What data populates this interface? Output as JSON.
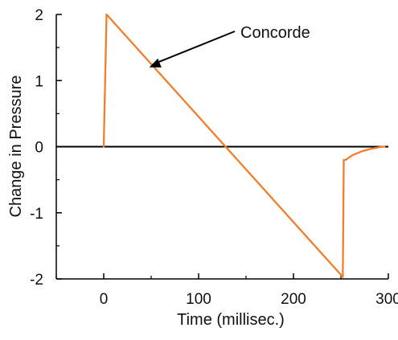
{
  "chart_data": {
    "type": "line",
    "xlabel": "Time (millisec.)",
    "ylabel": "Change in Pressure",
    "xlim": [
      -50,
      300
    ],
    "ylim": [
      -2,
      2
    ],
    "x_ticks": [
      0,
      100,
      200,
      300
    ],
    "x_tick_labels": [
      "0",
      "100",
      "200",
      "300"
    ],
    "y_ticks": [
      2,
      1,
      0,
      -1,
      -2
    ],
    "y_tick_labels": [
      "2",
      "1",
      "0",
      "-1",
      "-2"
    ],
    "grid": false,
    "zero_line": true,
    "series": [
      {
        "color": "#f07e2c",
        "x": [
          0,
          3,
          252,
          253,
          255,
          262,
          272,
          282,
          292,
          296
        ],
        "y": [
          0,
          2,
          -1.97,
          -0.2,
          -0.2,
          -0.13,
          -0.07,
          -0.03,
          -0.005,
          0
        ]
      }
    ],
    "annotations": [
      {
        "text": "Concorde",
        "arrow_target": {
          "x": 48,
          "y": 1.2
        }
      }
    ]
  }
}
